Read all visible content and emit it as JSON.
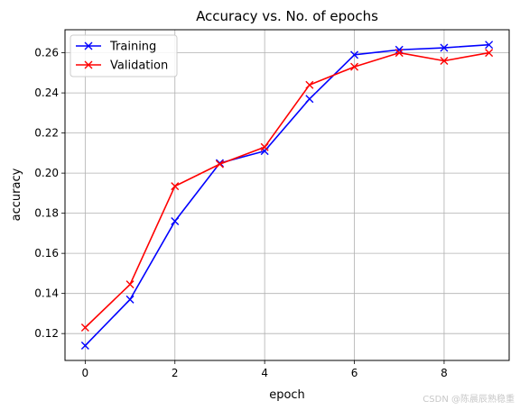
{
  "chart_data": {
    "type": "line",
    "title": "Accuracy vs. No. of epochs",
    "xlabel": "epoch",
    "ylabel": "accuracy",
    "x": [
      0,
      1,
      2,
      3,
      4,
      5,
      6,
      7,
      8,
      9
    ],
    "xlim": [
      -0.45,
      9.45
    ],
    "ylim": [
      0.1066,
      0.2715
    ],
    "xticks": [
      0,
      2,
      4,
      6,
      8
    ],
    "yticks": [
      0.12,
      0.14,
      0.16,
      0.18,
      0.2,
      0.22,
      0.24,
      0.26
    ],
    "ytick_labels": [
      "0.12",
      "0.14",
      "0.16",
      "0.18",
      "0.20",
      "0.22",
      "0.24",
      "0.26"
    ],
    "grid": true,
    "legend_position": "top-left",
    "marker": "x",
    "series": [
      {
        "name": "Training",
        "color": "#0000ff",
        "values": [
          0.114,
          0.137,
          0.176,
          0.205,
          0.211,
          0.237,
          0.259,
          0.2615,
          0.2625,
          0.264
        ]
      },
      {
        "name": "Validation",
        "color": "#ff0000",
        "values": [
          0.123,
          0.1445,
          0.1935,
          0.2045,
          0.213,
          0.244,
          0.253,
          0.26,
          0.256,
          0.26
        ]
      }
    ]
  },
  "watermark": "CSDN @陈晨辰熟稳重"
}
